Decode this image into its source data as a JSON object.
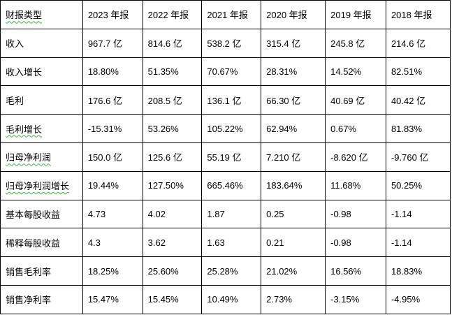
{
  "table": {
    "headers": [
      "财报类型",
      "2023 年报",
      "2022 年报",
      "2021 年报",
      "2020 年报",
      "2019 年报",
      "2018 年报"
    ],
    "rows": [
      {
        "label": "收入",
        "values": [
          "967.7 亿",
          "814.6 亿",
          "538.2 亿",
          "315.4 亿",
          "245.8 亿",
          "214.6 亿"
        ]
      },
      {
        "label": "收入增长",
        "values": [
          "18.80%",
          "51.35%",
          "70.67%",
          "28.31%",
          "14.52%",
          "82.51%"
        ]
      },
      {
        "label": "毛利",
        "values": [
          "176.6 亿",
          "208.5 亿",
          "136.1 亿",
          "66.30 亿",
          "40.69 亿",
          "40.42 亿"
        ]
      },
      {
        "label": "毛利增长",
        "values": [
          "-15.31%",
          "53.26%",
          "105.22%",
          "62.94%",
          "0.67%",
          "81.83%"
        ]
      },
      {
        "label": "归母净利润",
        "values": [
          "150.0 亿",
          "125.6 亿",
          "55.19 亿",
          "7.210 亿",
          "-8.620 亿",
          "-9.760 亿"
        ]
      },
      {
        "label": "归母净利润增长",
        "values": [
          "19.44%",
          "127.50%",
          "665.46%",
          "183.64%",
          "11.68%",
          "50.25%"
        ]
      },
      {
        "label": "基本每股收益",
        "values": [
          "4.73",
          "4.02",
          "1.87",
          "0.25",
          "-0.98",
          "-1.14"
        ]
      },
      {
        "label": "稀释每股收益",
        "values": [
          "4.3",
          "3.62",
          "1.63",
          "0.21",
          "-0.98",
          "-1.14"
        ]
      },
      {
        "label": "销售毛利率",
        "values": [
          "18.25%",
          "25.60%",
          "25.28%",
          "21.02%",
          "16.56%",
          "18.83%"
        ]
      },
      {
        "label": "销售净利率",
        "values": [
          "15.47%",
          "15.45%",
          "10.49%",
          "2.73%",
          "-3.15%",
          "-4.95%"
        ]
      }
    ]
  }
}
